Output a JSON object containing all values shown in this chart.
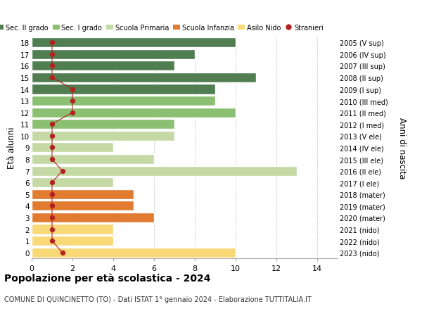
{
  "ages": [
    0,
    1,
    2,
    3,
    4,
    5,
    6,
    7,
    8,
    9,
    10,
    11,
    12,
    13,
    14,
    15,
    16,
    17,
    18
  ],
  "right_labels": [
    "2023 (nido)",
    "2022 (nido)",
    "2021 (nido)",
    "2020 (mater)",
    "2019 (mater)",
    "2018 (mater)",
    "2017 (I ele)",
    "2016 (II ele)",
    "2015 (III ele)",
    "2014 (IV ele)",
    "2013 (V ele)",
    "2012 (I med)",
    "2011 (II med)",
    "2010 (III med)",
    "2009 (I sup)",
    "2008 (II sup)",
    "2007 (III sup)",
    "2006 (IV sup)",
    "2005 (V sup)"
  ],
  "bar_values": [
    10,
    4,
    4,
    6,
    5,
    5,
    4,
    13,
    6,
    4,
    7,
    7,
    10,
    9,
    9,
    11,
    7,
    8,
    10
  ],
  "bar_colors": [
    "#F9D878",
    "#F9D878",
    "#F9D878",
    "#E07B30",
    "#E07B30",
    "#E07B30",
    "#C4D9A4",
    "#C4D9A4",
    "#C4D9A4",
    "#C4D9A4",
    "#C4D9A4",
    "#8BBF72",
    "#8BBF72",
    "#8BBF72",
    "#507E50",
    "#507E50",
    "#507E50",
    "#507E50",
    "#507E50"
  ],
  "stranieri_x": [
    1.5,
    1,
    1,
    1,
    1,
    1,
    1,
    1.5,
    1,
    1,
    1,
    1,
    2,
    2,
    2,
    1,
    1,
    1,
    1
  ],
  "stranieri_ages": [
    0,
    1,
    2,
    3,
    4,
    5,
    6,
    7,
    8,
    9,
    10,
    11,
    12,
    13,
    14,
    15,
    16,
    17,
    18
  ],
  "legend_labels": [
    "Sec. II grado",
    "Sec. I grado",
    "Scuola Primaria",
    "Scuola Infanzia",
    "Asilo Nido",
    "Stranieri"
  ],
  "legend_colors": [
    "#507E50",
    "#8BBF72",
    "#C4D9A4",
    "#E07B30",
    "#F9D878",
    "#B22222"
  ],
  "title": "Popolazione per età scolastica - 2024",
  "subtitle": "COMUNE DI QUINCINETTO (TO) - Dati ISTAT 1° gennaio 2024 - Elaborazione TUTTITALIA.IT",
  "ylabel": "Età alunni",
  "right_ylabel": "Anni di nascita",
  "xlabel_ticks": [
    0,
    2,
    4,
    6,
    8,
    10,
    12,
    14
  ],
  "xlim": [
    0,
    15
  ],
  "background_color": "#FFFFFF",
  "bar_edge_color": "#FFFFFF",
  "grid_color": "#CCCCCC"
}
